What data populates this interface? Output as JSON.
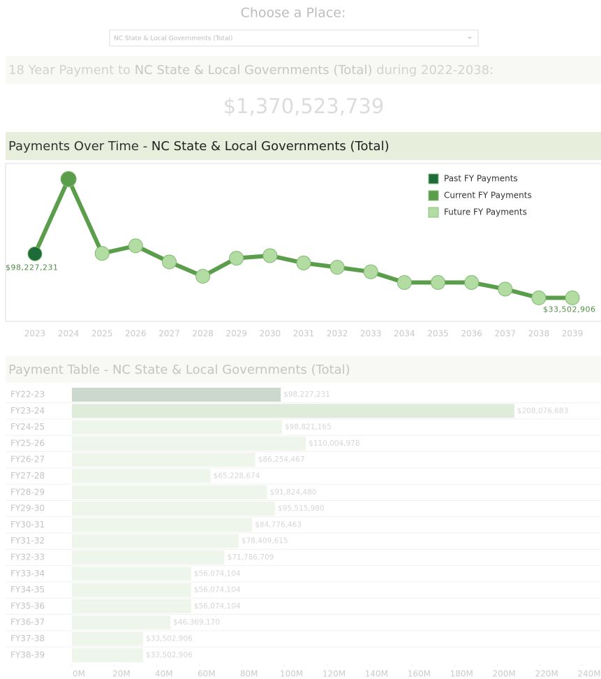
{
  "header": {
    "prompt": "Choose a Place:",
    "selected_place": "NC State & Local Governments (Total)"
  },
  "summary": {
    "prefix": "18 Year Payment to ",
    "place": "NC State & Local Governments (Total)",
    "suffix": " during 2022-2038:",
    "total": "$1,370,523,739"
  },
  "chart_data": [
    {
      "type": "line",
      "title_prefix": "Payments Over Time - ",
      "title_place": "NC State & Local Governments (Total)",
      "x": [
        "2023",
        "2024",
        "2025",
        "2026",
        "2027",
        "2028",
        "2029",
        "2030",
        "2031",
        "2032",
        "2033",
        "2034",
        "2035",
        "2036",
        "2037",
        "2038",
        "2039"
      ],
      "values": [
        98227231,
        208076683,
        98821165,
        110004978,
        86254467,
        65228674,
        91824480,
        95515980,
        84776463,
        78409615,
        71786709,
        56074104,
        56074104,
        56074104,
        46369170,
        33502906,
        33502906
      ],
      "value_labels": [
        "$98,227,231",
        null,
        null,
        null,
        null,
        null,
        null,
        null,
        null,
        null,
        null,
        null,
        null,
        null,
        null,
        null,
        "$33,502,906"
      ],
      "line_color": "#5a9e4b",
      "colors": [
        "#1e6b3a",
        "#5a9e4b",
        "#b3dca2",
        "#b3dca2",
        "#b3dca2",
        "#b3dca2",
        "#b3dca2",
        "#b3dca2",
        "#b3dca2",
        "#b3dca2",
        "#b3dca2",
        "#b3dca2",
        "#b3dca2",
        "#b3dca2",
        "#b3dca2",
        "#b3dca2",
        "#b3dca2"
      ],
      "legend": [
        {
          "name": "Past FY Payments",
          "color": "#1e6b3a"
        },
        {
          "name": "Current FY Payments",
          "color": "#5a9e4b"
        },
        {
          "name": "Future FY Payments",
          "color": "#b3dca2"
        }
      ],
      "legend_position": "upper right",
      "ylim": [
        0,
        230000000
      ]
    },
    {
      "type": "hbar",
      "title_prefix": "Payment Table - ",
      "title_place": "NC State & Local Governments (Total)",
      "categories": [
        "FY22-23",
        "FY23-24",
        "FY24-25",
        "FY25-26",
        "FY26-27",
        "FY27-28",
        "FY28-29",
        "FY29-30",
        "FY30-31",
        "FY31-32",
        "FY32-33",
        "FY33-34",
        "FY34-35",
        "FY35-36",
        "FY36-37",
        "FY37-38",
        "FY38-39"
      ],
      "values": [
        98227231,
        208076683,
        98821165,
        110004978,
        86254467,
        65228674,
        91824480,
        95515980,
        84776463,
        78409615,
        71786709,
        56074104,
        56074104,
        56074104,
        46369170,
        33502906,
        33502906
      ],
      "value_labels": [
        "$98,227,231",
        "$208,076,683",
        "$98,821,165",
        "$110,004,978",
        "$86,254,467",
        "$65,228,674",
        "$91,824,480",
        "$95,515,980",
        "$84,776,463",
        "$78,409,615",
        "$71,786,709",
        "$56,074,104",
        "$56,074,104",
        "$56,074,104",
        "$46,369,170",
        "$33,502,906",
        "$33,502,906"
      ],
      "colors": [
        "#cbd8ce",
        "#dfecd9",
        "#eef5ea",
        "#eef5ea",
        "#eef5ea",
        "#eef5ea",
        "#eef5ea",
        "#eef5ea",
        "#eef5ea",
        "#eef5ea",
        "#eef5ea",
        "#eef5ea",
        "#eef5ea",
        "#eef5ea",
        "#eef5ea",
        "#eef5ea",
        "#eef5ea"
      ],
      "xlim": [
        0,
        240000000
      ],
      "xticks": [
        {
          "value": 0,
          "label": "0M"
        },
        {
          "value": 20000000,
          "label": "20M"
        },
        {
          "value": 40000000,
          "label": "40M"
        },
        {
          "value": 60000000,
          "label": "60M"
        },
        {
          "value": 80000000,
          "label": "80M"
        },
        {
          "value": 100000000,
          "label": "100M"
        },
        {
          "value": 120000000,
          "label": "120M"
        },
        {
          "value": 140000000,
          "label": "140M"
        },
        {
          "value": 160000000,
          "label": "160M"
        },
        {
          "value": 180000000,
          "label": "180M"
        },
        {
          "value": 200000000,
          "label": "200M"
        },
        {
          "value": 220000000,
          "label": "220M"
        },
        {
          "value": 240000000,
          "label": "240M"
        }
      ]
    }
  ]
}
